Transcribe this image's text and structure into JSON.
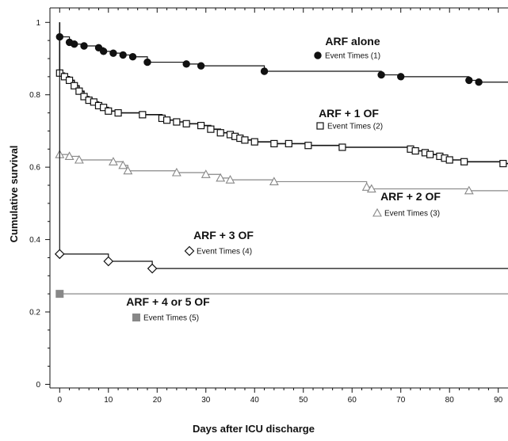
{
  "chart_data": {
    "type": "line",
    "title": "",
    "xlabel": "Days after ICU discharge",
    "ylabel": "Cumulative survival",
    "xlim": [
      -2,
      92
    ],
    "ylim": [
      -0.01,
      1.04
    ],
    "x_ticks": [
      0,
      10,
      20,
      30,
      40,
      50,
      60,
      70,
      80,
      90
    ],
    "y_ticks": [
      0,
      0.2,
      0.4,
      0.6,
      0.8,
      1
    ],
    "step": true,
    "series": [
      {
        "name": "ARF alone",
        "legend": "Event Times (1)",
        "marker": "filled-circle",
        "color": "#111111",
        "start": [
          0,
          1.0
        ],
        "points": [
          [
            0,
            0.96
          ],
          [
            2,
            0.945
          ],
          [
            3,
            0.94
          ],
          [
            5,
            0.935
          ],
          [
            8,
            0.93
          ],
          [
            9,
            0.92
          ],
          [
            11,
            0.915
          ],
          [
            13,
            0.91
          ],
          [
            15,
            0.905
          ],
          [
            18,
            0.89
          ],
          [
            26,
            0.885
          ],
          [
            29,
            0.88
          ],
          [
            42,
            0.865
          ],
          [
            66,
            0.855
          ],
          [
            70,
            0.85
          ],
          [
            84,
            0.84
          ],
          [
            86,
            0.835
          ]
        ],
        "end_x": 92
      },
      {
        "name": "ARF + 1 OF",
        "legend": "Event Times (2)",
        "marker": "open-square",
        "color": "#111111",
        "start": [
          0,
          1.0
        ],
        "points": [
          [
            0,
            0.86
          ],
          [
            1,
            0.85
          ],
          [
            2,
            0.84
          ],
          [
            3,
            0.825
          ],
          [
            4,
            0.81
          ],
          [
            5,
            0.795
          ],
          [
            6,
            0.785
          ],
          [
            7,
            0.78
          ],
          [
            8,
            0.77
          ],
          [
            9,
            0.765
          ],
          [
            10,
            0.755
          ],
          [
            12,
            0.75
          ],
          [
            17,
            0.745
          ],
          [
            21,
            0.735
          ],
          [
            22,
            0.73
          ],
          [
            24,
            0.725
          ],
          [
            26,
            0.72
          ],
          [
            29,
            0.715
          ],
          [
            31,
            0.705
          ],
          [
            33,
            0.695
          ],
          [
            35,
            0.69
          ],
          [
            36,
            0.685
          ],
          [
            37,
            0.68
          ],
          [
            38,
            0.675
          ],
          [
            40,
            0.67
          ],
          [
            44,
            0.665
          ],
          [
            47,
            0.665
          ],
          [
            51,
            0.66
          ],
          [
            58,
            0.655
          ],
          [
            72,
            0.65
          ],
          [
            73,
            0.645
          ],
          [
            75,
            0.64
          ],
          [
            76,
            0.635
          ],
          [
            78,
            0.63
          ],
          [
            79,
            0.625
          ],
          [
            80,
            0.62
          ],
          [
            83,
            0.615
          ],
          [
            91,
            0.61
          ]
        ],
        "end_x": 92
      },
      {
        "name": "ARF + 2 OF",
        "legend": "Event Times (3)",
        "marker": "open-triangle",
        "color": "#888888",
        "start": [
          0,
          0.64
        ],
        "points": [
          [
            0,
            0.635
          ],
          [
            2,
            0.63
          ],
          [
            4,
            0.62
          ],
          [
            11,
            0.615
          ],
          [
            13,
            0.605
          ],
          [
            14,
            0.59
          ],
          [
            24,
            0.585
          ],
          [
            30,
            0.58
          ],
          [
            33,
            0.57
          ],
          [
            35,
            0.565
          ],
          [
            44,
            0.56
          ],
          [
            63,
            0.545
          ],
          [
            64,
            0.54
          ],
          [
            84,
            0.535
          ]
        ],
        "end_x": 92
      },
      {
        "name": "ARF + 3 OF",
        "legend": "Event Times (4)",
        "marker": "open-diamond",
        "color": "#111111",
        "start": [
          0,
          1.0
        ],
        "points": [
          [
            0,
            0.36
          ],
          [
            10,
            0.34
          ],
          [
            19,
            0.32
          ]
        ],
        "end_x": 92
      },
      {
        "name": "ARF + 4 or 5 OF",
        "legend": "Event Times (5)",
        "marker": "filled-square",
        "color": "#888888",
        "start": [
          0,
          0.26
        ],
        "points": [
          [
            0,
            0.25
          ]
        ],
        "end_x": 92
      }
    ]
  }
}
